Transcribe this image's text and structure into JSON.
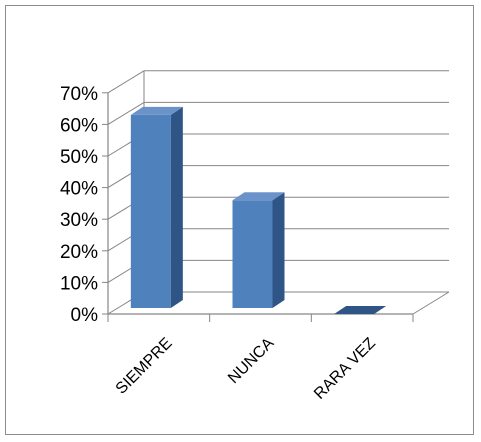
{
  "chart_data": {
    "type": "bar",
    "categories": [
      "SIEMPRE",
      "NUNCA",
      "RARA VEZ"
    ],
    "series": [
      {
        "values": [
          0.63,
          0.36,
          0.0
        ]
      }
    ],
    "yticks": [
      "0%",
      "10%",
      "20%",
      "30%",
      "40%",
      "50%",
      "60%",
      "70%"
    ],
    "ylim": [
      0,
      0.7
    ],
    "grid": true,
    "legend": "none",
    "three_d": true,
    "colors": {
      "bar_front": "#4f81bd",
      "bar_side": "#2f5587",
      "bar_top": "#6b93c9",
      "grid": "#868686",
      "axis": "#868686"
    }
  }
}
